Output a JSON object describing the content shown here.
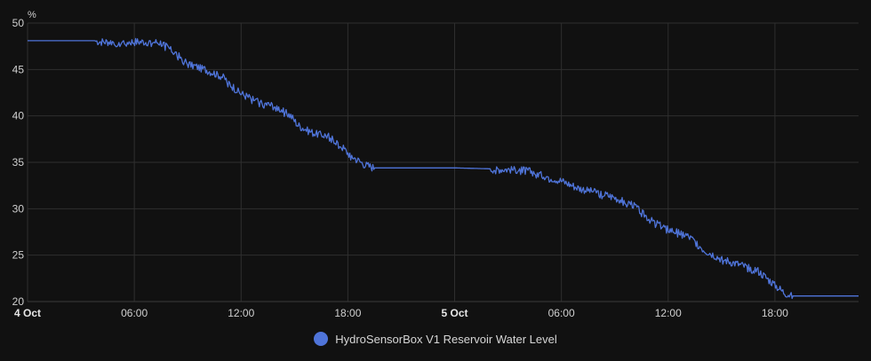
{
  "chart_data": {
    "type": "line",
    "unit": "%",
    "y_range": [
      20,
      50
    ],
    "y_ticks": [
      20,
      25,
      30,
      35,
      40,
      45,
      50
    ],
    "x_range_hours": [
      0,
      46.7
    ],
    "x_ticks": [
      {
        "hour": 0,
        "label": "4 Oct",
        "major": true
      },
      {
        "hour": 6,
        "label": "06:00",
        "major": false
      },
      {
        "hour": 12,
        "label": "12:00",
        "major": false
      },
      {
        "hour": 18,
        "label": "18:00",
        "major": false
      },
      {
        "hour": 24,
        "label": "5 Oct",
        "major": true
      },
      {
        "hour": 30,
        "label": "06:00",
        "major": false
      },
      {
        "hour": 36,
        "label": "12:00",
        "major": false
      },
      {
        "hour": 42,
        "label": "18:00",
        "major": false
      }
    ],
    "grid": true,
    "series": [
      {
        "name": "HydroSensorBox V1 Reservoir Water Level",
        "color": "#4f74d9",
        "points": [
          [
            0,
            48.1
          ],
          [
            3.8,
            48.1
          ],
          [
            4.2,
            48.0
          ],
          [
            6.0,
            48.0
          ],
          [
            7.0,
            48.0
          ],
          [
            7.5,
            47.9
          ],
          [
            8.0,
            47.2
          ],
          [
            8.5,
            46.5
          ],
          [
            9.0,
            45.6
          ],
          [
            10.0,
            45.0
          ],
          [
            11.0,
            44.2
          ],
          [
            11.5,
            43.2
          ],
          [
            12.0,
            42.4
          ],
          [
            13.0,
            41.5
          ],
          [
            14.0,
            41.0
          ],
          [
            14.8,
            40.0
          ],
          [
            15.2,
            39.0
          ],
          [
            16.0,
            38.2
          ],
          [
            17.0,
            37.8
          ],
          [
            17.5,
            37.0
          ],
          [
            18.0,
            36.0
          ],
          [
            18.5,
            35.3
          ],
          [
            19.0,
            34.7
          ],
          [
            19.5,
            34.4
          ],
          [
            20.0,
            34.4
          ],
          [
            24.0,
            34.4
          ],
          [
            28.0,
            34.2
          ],
          [
            29.0,
            33.6
          ],
          [
            30.0,
            33.0
          ],
          [
            31.0,
            32.2
          ],
          [
            32.0,
            31.8
          ],
          [
            33.0,
            31.2
          ],
          [
            34.0,
            30.5
          ],
          [
            35.0,
            28.8
          ],
          [
            36.0,
            27.8
          ],
          [
            37.0,
            27.2
          ],
          [
            37.5,
            26.5
          ],
          [
            38.0,
            25.6
          ],
          [
            39.0,
            24.6
          ],
          [
            40.0,
            24.0
          ],
          [
            41.0,
            23.4
          ],
          [
            41.5,
            22.6
          ],
          [
            42.0,
            21.8
          ],
          [
            42.5,
            21.0
          ],
          [
            43.0,
            20.6
          ],
          [
            44.0,
            20.6
          ],
          [
            46.7,
            20.6
          ]
        ],
        "noisy_intervals": [
          [
            3.8,
            19.5
          ],
          [
            26.0,
            43.0
          ]
        ]
      }
    ],
    "legend": {
      "position": "bottom-center",
      "label": "HydroSensorBox V1 Reservoir Water Level"
    }
  }
}
